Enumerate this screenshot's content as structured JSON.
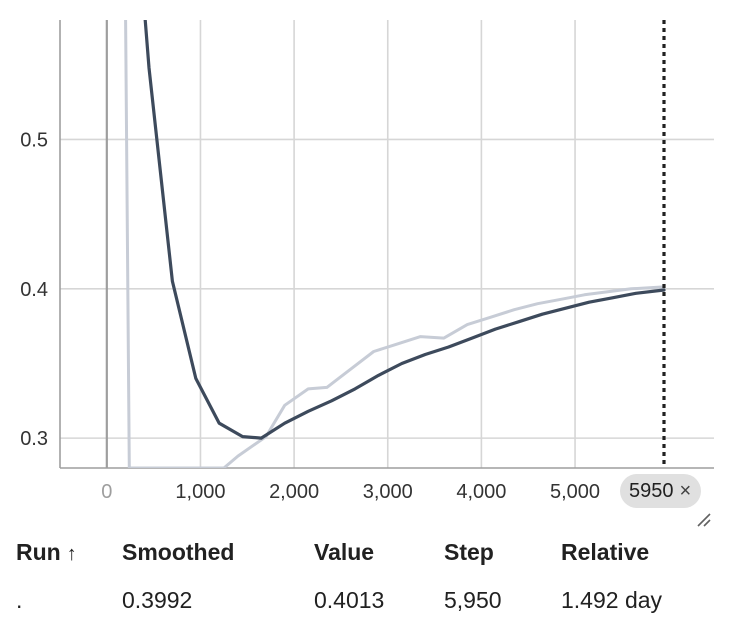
{
  "chart_data": {
    "type": "line",
    "title": "",
    "xlabel": "",
    "ylabel": "",
    "xlim": [
      -500,
      5950
    ],
    "ylim": [
      0.28,
      0.58
    ],
    "x_ticks": [
      {
        "value": 0,
        "label": "0"
      },
      {
        "value": 1000,
        "label": "1,000"
      },
      {
        "value": 2000,
        "label": "2,000"
      },
      {
        "value": 3000,
        "label": "3,000"
      },
      {
        "value": 4000,
        "label": "4,000"
      },
      {
        "value": 5000,
        "label": "5,000"
      }
    ],
    "y_ticks": [
      {
        "value": 0.3,
        "label": "0.3"
      },
      {
        "value": 0.4,
        "label": "0.4"
      },
      {
        "value": 0.5,
        "label": "0.5"
      }
    ],
    "grid": true,
    "series": [
      {
        "role": "raw",
        "color": "#c7ccd6",
        "x": [
          200,
          240,
          1250,
          1400,
          1700,
          1900,
          2150,
          2350,
          2600,
          2850,
          3100,
          3350,
          3600,
          3850,
          4100,
          4350,
          4600,
          4850,
          5100,
          5350,
          5600,
          5950
        ],
        "y": [
          0.58,
          0.28,
          0.28,
          0.288,
          0.301,
          0.322,
          0.333,
          0.334,
          0.346,
          0.358,
          0.363,
          0.368,
          0.367,
          0.376,
          0.381,
          0.386,
          0.39,
          0.393,
          0.396,
          0.398,
          0.4,
          0.4013
        ]
      },
      {
        "role": "smoothed",
        "color": "#3d4a5c",
        "x": [
          410,
          450,
          700,
          950,
          1200,
          1450,
          1650,
          1900,
          2150,
          2400,
          2650,
          2900,
          3150,
          3400,
          3650,
          3900,
          4150,
          4400,
          4650,
          4900,
          5150,
          5400,
          5650,
          5950
        ],
        "y": [
          0.58,
          0.548,
          0.405,
          0.34,
          0.31,
          0.301,
          0.3,
          0.31,
          0.318,
          0.325,
          0.333,
          0.342,
          0.35,
          0.356,
          0.361,
          0.367,
          0.373,
          0.378,
          0.383,
          0.387,
          0.391,
          0.394,
          0.397,
          0.3992
        ]
      }
    ],
    "cursor_step": 5950
  },
  "step_chip": {
    "label": "5950",
    "close_glyph": "×"
  },
  "table": {
    "headers": {
      "run": "Run",
      "sort_glyph": "↑",
      "smoothed": "Smoothed",
      "value": "Value",
      "step": "Step",
      "relative": "Relative"
    },
    "rows": [
      {
        "run": ".",
        "smoothed": "0.3992",
        "value": "0.4013",
        "step": "5,950",
        "relative": "1.492 day"
      }
    ]
  },
  "icons": {
    "resize": "resize-handle-icon",
    "close": "close-icon"
  }
}
